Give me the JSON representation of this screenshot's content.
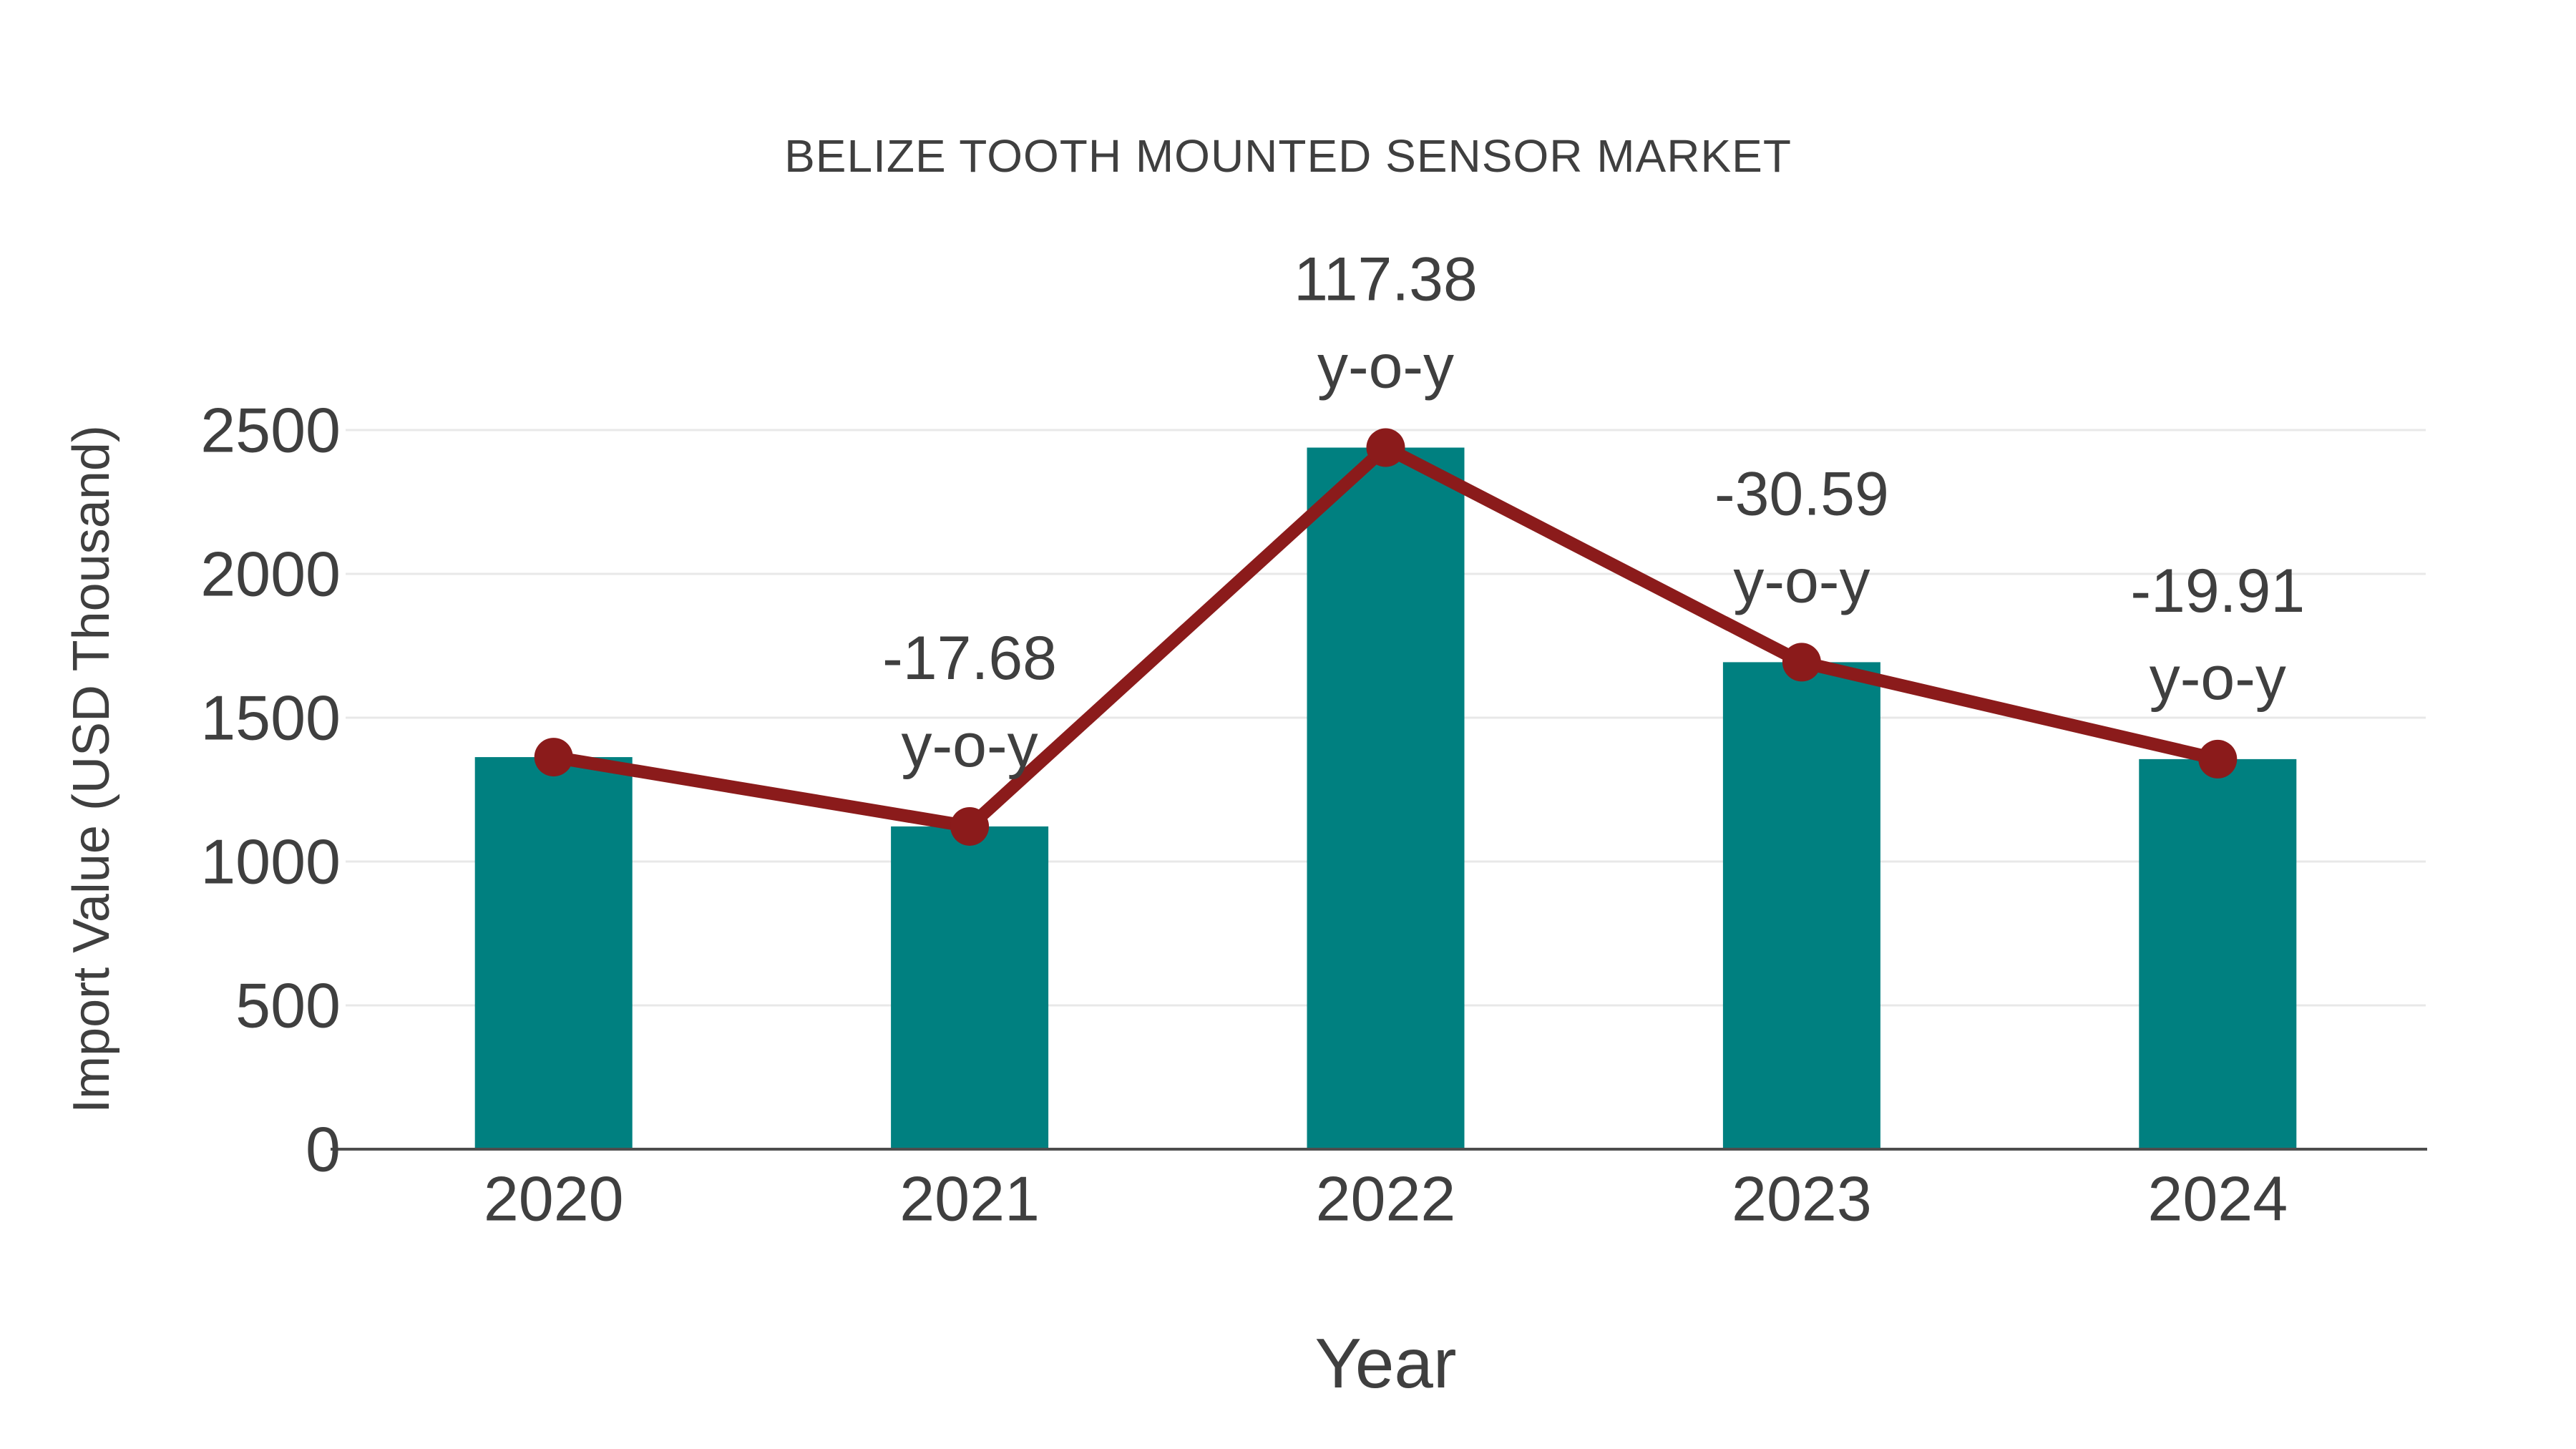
{
  "chart_data": {
    "type": "bar",
    "title": "BELIZE TOOTH MOUNTED SENSOR MARKET",
    "xlabel": "Year",
    "ylabel": "Import Value (USD Thousand)",
    "categories": [
      "2020",
      "2021",
      "2022",
      "2023",
      "2024"
    ],
    "values": [
      1363,
      1122,
      2439,
      1693,
      1356
    ],
    "ylim": [
      0,
      2500
    ],
    "yticks": [
      0,
      500,
      1000,
      1500,
      2000,
      2500
    ],
    "grid": true,
    "legend": false,
    "line_overlay": {
      "name": "year-over-year change",
      "values": [
        1363,
        1122,
        2439,
        1693,
        1356
      ],
      "yoy_percent": [
        null,
        -17.68,
        117.38,
        -30.59,
        -19.91
      ],
      "annotation_suffix": "y-o-y"
    },
    "colors": {
      "bar": "#008080",
      "line": "#8B1B1B",
      "marker": "#8B1B1B",
      "text": "#3F3F3F",
      "grid": "#E8E8E8",
      "axis": "#4D4D4D",
      "background": "#FFFFFF"
    }
  }
}
